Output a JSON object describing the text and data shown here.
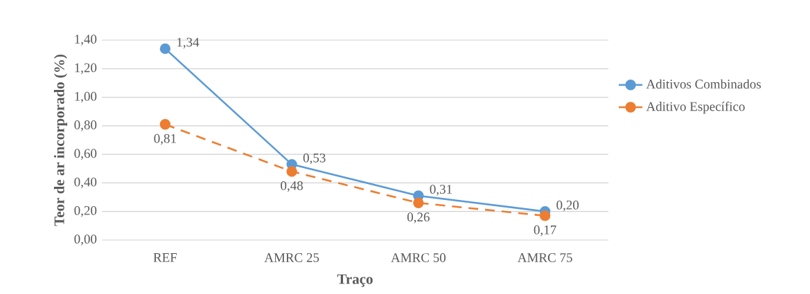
{
  "chart_data": {
    "type": "line",
    "xlabel": "Traço",
    "ylabel": "Teor de ar incorporado (%)",
    "categories": [
      "REF",
      "AMRC 25",
      "AMRC 50",
      "AMRC 75"
    ],
    "ylim": [
      0,
      1.4
    ],
    "yticks": [
      {
        "value": 0,
        "label": "0,00"
      },
      {
        "value": 0.2,
        "label": "0,20"
      },
      {
        "value": 0.4,
        "label": "0,40"
      },
      {
        "value": 0.6,
        "label": "0,60"
      },
      {
        "value": 0.8,
        "label": "0,80"
      },
      {
        "value": 1.0,
        "label": "1,00"
      },
      {
        "value": 1.2,
        "label": "1,20"
      },
      {
        "value": 1.4,
        "label": "1,40"
      }
    ],
    "grid": "y",
    "legend": "right",
    "marker": "circle",
    "series": [
      {
        "name": "Aditivos Combinados",
        "color": "#5b9bd5",
        "line_style": "solid",
        "values": [
          1.34,
          0.53,
          0.31,
          0.2
        ],
        "value_labels": [
          "1,34",
          "0,53",
          "0,31",
          "0,20"
        ]
      },
      {
        "name": "Aditivo Específico",
        "color": "#ed7d31",
        "line_style": "dashed",
        "values": [
          0.81,
          0.48,
          0.26,
          0.17
        ],
        "value_labels": [
          "0,81",
          "0,48",
          "0,26",
          "0,17"
        ]
      }
    ]
  }
}
